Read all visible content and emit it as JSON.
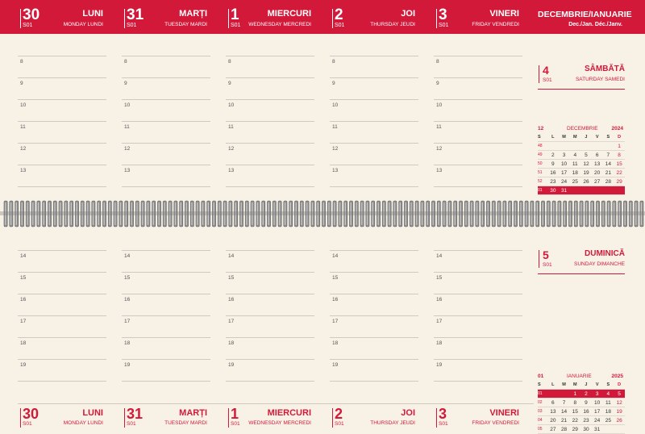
{
  "days": [
    {
      "num": "30",
      "week": "S01",
      "name": "LUNI",
      "sub": "MONDAY LUNDI"
    },
    {
      "num": "31",
      "week": "S01",
      "name": "MARȚI",
      "sub": "TUESDAY MARDI"
    },
    {
      "num": "1",
      "week": "S01",
      "name": "MIERCURI",
      "sub": "WEDNESDAY MERCREDI"
    },
    {
      "num": "2",
      "week": "S01",
      "name": "JOI",
      "sub": "THURSDAY JEUDI"
    },
    {
      "num": "3",
      "week": "S01",
      "name": "VINERI",
      "sub": "FRIDAY VENDREDI"
    }
  ],
  "month_header": {
    "title": "DECEMBRIE/IANUARIE",
    "sub": "Dec./Jan.  Déc./Janv."
  },
  "hours_top": [
    "8",
    "9",
    "10",
    "11",
    "12",
    "13"
  ],
  "hours_bottom": [
    "14",
    "15",
    "16",
    "17",
    "18",
    "19"
  ],
  "saturday": {
    "num": "4",
    "week": "S01",
    "name": "SÂMBĂTĂ",
    "sub": "SATURDAY  SAMEDI"
  },
  "sunday": {
    "num": "5",
    "week": "S01",
    "name": "DUMINICĂ",
    "sub": "SUNDAY  DIMANCHE"
  },
  "cal_dec": {
    "week": "12",
    "month": "DECEMBRIE",
    "year": "2024",
    "weekdays": [
      "S",
      "L",
      "M",
      "M",
      "J",
      "V",
      "S",
      "D"
    ],
    "rows": [
      [
        "48",
        "",
        "",
        "",
        "",
        "",
        "",
        "1"
      ],
      [
        "49",
        "2",
        "3",
        "4",
        "5",
        "6",
        "7",
        "8"
      ],
      [
        "50",
        "9",
        "10",
        "11",
        "12",
        "13",
        "14",
        "15"
      ],
      [
        "51",
        "16",
        "17",
        "18",
        "19",
        "20",
        "21",
        "22"
      ],
      [
        "52",
        "23",
        "24",
        "25",
        "26",
        "27",
        "28",
        "29"
      ],
      [
        "01",
        "30",
        "31",
        "",
        "",
        "",
        "",
        ""
      ]
    ],
    "highlight_row": 5
  },
  "cal_jan": {
    "week": "01",
    "month": "IANUARIE",
    "year": "2025",
    "weekdays": [
      "S",
      "L",
      "M",
      "M",
      "J",
      "V",
      "S",
      "D"
    ],
    "rows": [
      [
        "01",
        "",
        "",
        "1",
        "2",
        "3",
        "4",
        "5"
      ],
      [
        "02",
        "6",
        "7",
        "8",
        "9",
        "10",
        "11",
        "12"
      ],
      [
        "03",
        "13",
        "14",
        "15",
        "16",
        "17",
        "18",
        "19"
      ],
      [
        "04",
        "20",
        "21",
        "22",
        "23",
        "24",
        "25",
        "26"
      ],
      [
        "05",
        "27",
        "28",
        "29",
        "30",
        "31",
        "",
        ""
      ]
    ],
    "highlight_row": 0
  },
  "colors": {
    "accent": "#d3193a",
    "paper": "#f7f1e6"
  }
}
